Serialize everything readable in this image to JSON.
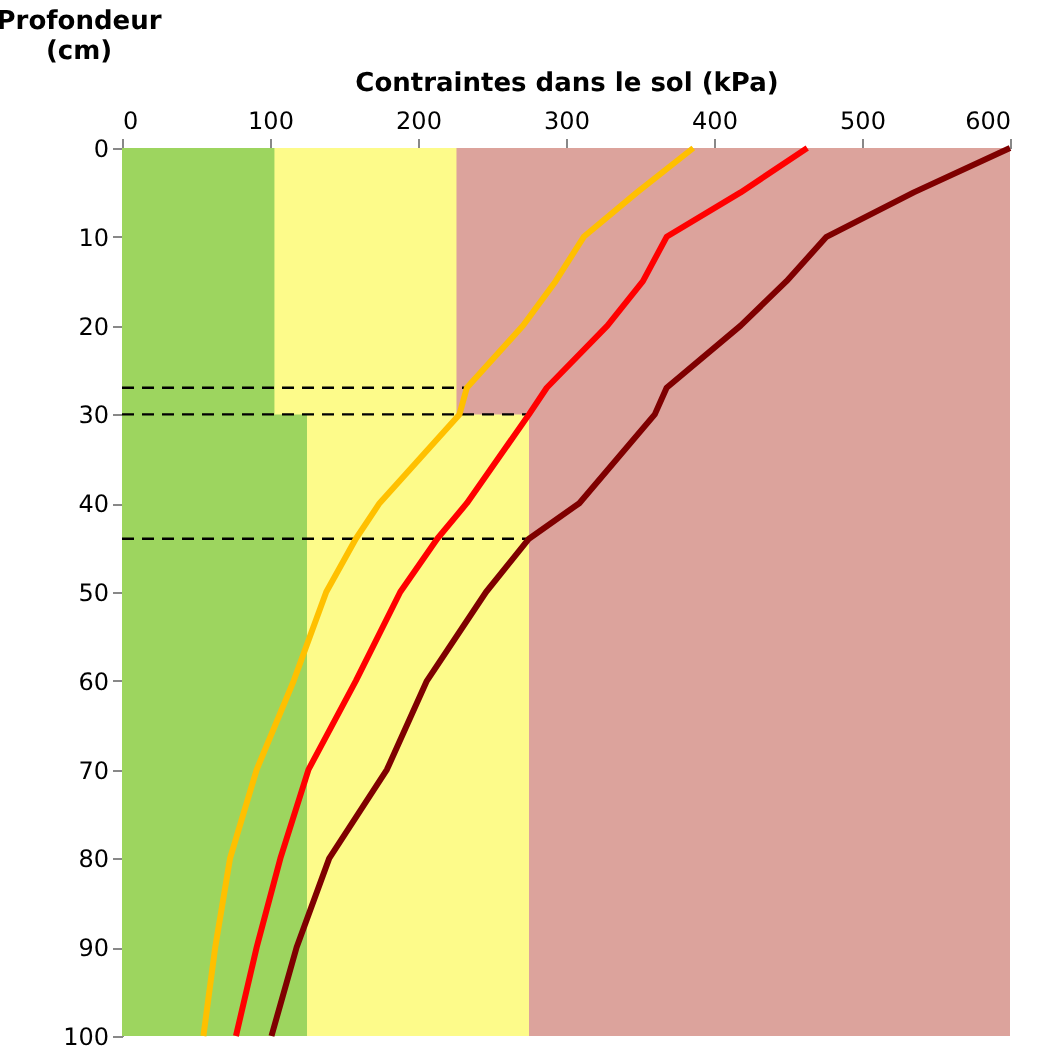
{
  "chart_data": {
    "type": "line",
    "xlabel": "Contraintes dans le sol (kPa)",
    "ylabel": "Profondeur\n(cm)",
    "xlim": [
      0,
      600
    ],
    "xticks": [
      0,
      100,
      200,
      300,
      400,
      500,
      600
    ],
    "ylim": [
      100,
      0
    ],
    "yticks": [
      0,
      10,
      20,
      30,
      40,
      50,
      60,
      70,
      80,
      90,
      100
    ],
    "grid": false,
    "series": [
      {
        "type": "area",
        "color": "#9dd55f",
        "x": [
          0,
          125
        ],
        "values": [
          100,
          100
        ]
      },
      {
        "type": "area",
        "color": "#fdfb8a",
        "x": [
          103,
          125,
          125,
          275
        ],
        "values": [
          30,
          30,
          100,
          100
        ]
      },
      {
        "type": "area",
        "color": "#dca39c",
        "x": [
          226,
          275,
          275,
          600
        ],
        "values": [
          30,
          30,
          100,
          100
        ]
      },
      {
        "color": "#000000",
        "line_style": "dashed",
        "x": [
          0,
          233
        ],
        "values": [
          27,
          27
        ]
      },
      {
        "color": "#000000",
        "line_style": "dashed",
        "x": [
          0,
          275
        ],
        "values": [
          30,
          30
        ]
      },
      {
        "color": "#000000",
        "line_style": "dashed",
        "x": [
          0,
          275
        ],
        "values": [
          44,
          44
        ]
      },
      {
        "color": "#ffc000",
        "line_style": "solid",
        "x": [
          386,
          348,
          312,
          293,
          271,
          233,
          228,
          174,
          158,
          138,
          116,
          91,
          73,
          63,
          55
        ],
        "values": [
          0,
          5,
          10,
          15,
          20,
          27,
          30,
          40,
          44,
          50,
          60,
          70,
          80,
          90,
          100
        ]
      },
      {
        "color": "#ff0000",
        "line_style": "solid",
        "x": [
          463,
          418,
          368,
          352,
          328,
          287,
          275,
          233,
          213,
          188,
          158,
          126,
          107,
          91,
          77
        ],
        "values": [
          0,
          5,
          10,
          15,
          20,
          27,
          30,
          40,
          44,
          50,
          60,
          70,
          80,
          90,
          100
        ]
      },
      {
        "color": "#7f0000",
        "line_style": "solid",
        "x": [
          600,
          535,
          476,
          449,
          418,
          368,
          360,
          309,
          275,
          246,
          206,
          179,
          140,
          118,
          101
        ],
        "values": [
          0,
          5,
          10,
          15,
          20,
          27,
          30,
          40,
          44,
          50,
          60,
          70,
          80,
          90,
          100
        ]
      }
    ]
  }
}
